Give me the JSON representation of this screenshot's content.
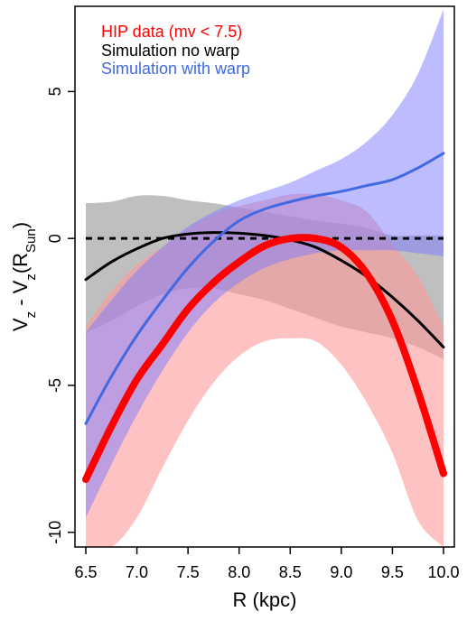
{
  "chart_data": {
    "type": "line",
    "xlabel": "R (kpc)",
    "ylabel": "V̄z - V̄z(R_Sun)",
    "ylabel_parts": {
      "main": "Vz - Vz(R",
      "sub": "Sun",
      "end": ")",
      "z1": "z",
      "z2": "z"
    },
    "xlim": [
      6.5,
      10.0
    ],
    "ylim": [
      -10.5,
      7.9
    ],
    "x_ticks": [
      6.5,
      7.0,
      7.5,
      8.0,
      8.5,
      9.0,
      9.5,
      10.0
    ],
    "x_tick_labels": [
      "6.5",
      "7.0",
      "7.5",
      "8.0",
      "8.5",
      "9.0",
      "9.5",
      "10.0"
    ],
    "y_ticks": [
      -10,
      -5,
      0,
      5
    ],
    "y_tick_labels": [
      "-10",
      "-5",
      "0",
      "5"
    ],
    "grid": false,
    "legend_position": "top-left",
    "legend": [
      {
        "label": "HIP data (mv < 7.5)",
        "color": "#ff0000"
      },
      {
        "label": "Simulation no warp",
        "color": "#000000"
      },
      {
        "label": "Simulation with warp",
        "color": "#4169e1"
      }
    ],
    "x": [
      6.5,
      6.75,
      7.0,
      7.25,
      7.5,
      7.75,
      8.0,
      8.25,
      8.5,
      8.75,
      9.0,
      9.25,
      9.5,
      9.75,
      10.0
    ],
    "series": [
      {
        "name": "HIP data (mv < 7.5)",
        "color": "#ff0000",
        "line_width": 8,
        "values": [
          -8.2,
          -6.4,
          -4.8,
          -3.6,
          -2.4,
          -1.5,
          -0.8,
          -0.25,
          0.0,
          0.0,
          -0.3,
          -1.2,
          -2.8,
          -5.2,
          -8.0
        ],
        "band_upper": [
          -3.0,
          -1.8,
          -0.9,
          -0.3,
          0.3,
          0.8,
          1.1,
          1.3,
          1.5,
          1.5,
          1.3,
          0.9,
          -0.2,
          -1.3,
          -3.0
        ],
        "band_lower": [
          -10.5,
          -10.5,
          -9.5,
          -7.8,
          -6.2,
          -4.9,
          -4.0,
          -3.5,
          -3.4,
          -3.5,
          -4.3,
          -5.6,
          -7.3,
          -9.6,
          -10.5
        ],
        "band_color": "#ff9a9a",
        "band_opacity": 0.6
      },
      {
        "name": "Simulation no warp",
        "color": "#000000",
        "line_width": 3,
        "values": [
          -1.4,
          -0.8,
          -0.35,
          0.0,
          0.15,
          0.2,
          0.18,
          0.1,
          -0.05,
          -0.3,
          -0.75,
          -1.3,
          -2.0,
          -2.8,
          -3.7
        ],
        "band_upper": [
          1.2,
          1.25,
          1.45,
          1.45,
          1.3,
          1.2,
          1.05,
          0.9,
          0.75,
          0.6,
          0.5,
          0.35,
          0.1,
          0.1,
          0.1
        ],
        "band_lower": [
          -3.2,
          -2.8,
          -2.3,
          -1.9,
          -1.7,
          -1.7,
          -1.9,
          -2.1,
          -2.4,
          -2.7,
          -3.0,
          -3.2,
          -3.4,
          -3.7,
          -4.1
        ],
        "band_color": "#8a8a8a",
        "band_opacity": 0.55
      },
      {
        "name": "Simulation with warp",
        "color": "#4169e1",
        "line_width": 3,
        "values": [
          -6.3,
          -4.7,
          -3.3,
          -2.1,
          -1.0,
          -0.1,
          0.6,
          1.0,
          1.25,
          1.45,
          1.6,
          1.8,
          2.0,
          2.4,
          2.9
        ],
        "band_upper": [
          -3.2,
          -2.1,
          -1.1,
          -0.3,
          0.4,
          0.9,
          1.3,
          1.6,
          1.9,
          2.3,
          2.7,
          3.3,
          4.2,
          5.6,
          7.8
        ],
        "band_lower": [
          -9.5,
          -7.7,
          -6.0,
          -4.5,
          -3.2,
          -2.2,
          -1.5,
          -1.0,
          -0.7,
          -0.5,
          -0.4,
          -0.4,
          -0.4,
          -0.5,
          -0.6
        ],
        "band_color": "#7a7aff",
        "band_opacity": 0.5
      },
      {
        "name": "",
        "color": "#000000",
        "line_width": 3,
        "dashed": true,
        "values": [
          0,
          0,
          0,
          0,
          0,
          0,
          0,
          0,
          0,
          0,
          0,
          0,
          0,
          0,
          0
        ]
      }
    ]
  }
}
